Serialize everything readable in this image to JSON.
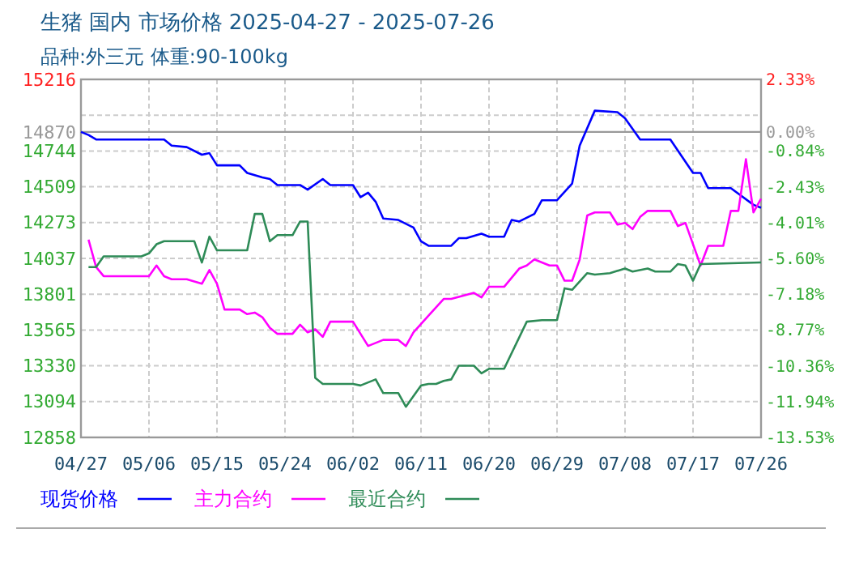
{
  "chart_data": {
    "type": "line",
    "title": "生猪 国内 市场价格 2025-04-27 - 2025-07-26",
    "subtitle": "品种:外三元 体重:90-100kg",
    "xlim": [
      "--04-27",
      "--07-26"
    ],
    "xticks": [
      {
        "value": "--04-27",
        "label": "04/27"
      },
      {
        "value": "--05-06",
        "label": "05/06"
      },
      {
        "value": "--05-15",
        "label": "05/15"
      },
      {
        "value": "--05-24",
        "label": "05/24"
      },
      {
        "value": "--06-02",
        "label": "06/02"
      },
      {
        "value": "--06-11",
        "label": "06/11"
      },
      {
        "value": "--06-20",
        "label": "06/20"
      },
      {
        "value": "--06-29",
        "label": "06/29"
      },
      {
        "value": "--07-08",
        "label": "07/08"
      },
      {
        "value": "--07-17",
        "label": "07/17"
      },
      {
        "value": "--07-26",
        "label": "07/26"
      }
    ],
    "ylim": [
      12858,
      15216
    ],
    "yticks": [
      15216,
      {
        "value": 14980,
        "label": null
      },
      14744,
      14509,
      14273,
      14037,
      13801,
      13565,
      13330,
      13094,
      12858
    ],
    "y2lim": [
      -13.53,
      2.33
    ],
    "y2ticks": [
      {
        "value": 2.33,
        "label": "2.33%"
      },
      {
        "value": 0,
        "label": "0.00%"
      },
      {
        "value": -0.84,
        "label": "-0.84%"
      },
      {
        "value": -2.43,
        "label": "-2.43%"
      },
      {
        "value": -4.01,
        "label": "-4.01%"
      },
      {
        "value": -5.6,
        "label": "-5.60%"
      },
      {
        "value": -7.18,
        "label": "-7.18%"
      },
      {
        "value": -8.77,
        "label": "-8.77%"
      },
      {
        "value": -10.36,
        "label": "-10.36%"
      },
      {
        "value": -11.94,
        "label": "-11.94%"
      },
      {
        "value": -13.53,
        "label": "-13.53%"
      }
    ],
    "ref_lines": [
      {
        "axis": "y",
        "value": 14870,
        "label": "14870",
        "color": "#999999"
      }
    ],
    "grid": true,
    "legend": "bottom",
    "line_style": "solid",
    "marker": "none",
    "series": [
      {
        "name": "现货价格",
        "color": "#0000ff",
        "x": [
          "--04-27",
          "--04-28",
          "--04-29",
          "--05-08",
          "--05-09",
          "--05-11",
          "--05-13",
          "--05-14",
          "--05-15",
          "--05-18",
          "--05-19",
          "--05-21",
          "--05-22",
          "--05-23",
          "--05-26",
          "--05-27",
          "--05-29",
          "--05-30",
          "--06-02",
          "--06-03",
          "--06-04",
          "--06-05",
          "--06-06",
          "--06-08",
          "--06-10",
          "--06-11",
          "--06-12",
          "--06-15",
          "--06-16",
          "--06-17",
          "--06-19",
          "--06-20",
          "--06-22",
          "--06-23",
          "--06-24",
          "--06-26",
          "--06-27",
          "--06-29",
          "--07-01",
          "--07-02",
          "--07-04",
          "--07-07",
          "--07-08",
          "--07-10",
          "--07-14",
          "--07-17",
          "--07-18",
          "--07-19",
          "--07-22",
          "--07-25",
          "--07-26"
        ],
        "values": [
          14870,
          14850,
          14820,
          14820,
          14780,
          14770,
          14720,
          14730,
          14650,
          14650,
          14600,
          14570,
          14560,
          14520,
          14520,
          14490,
          14560,
          14520,
          14520,
          14440,
          14470,
          14410,
          14300,
          14290,
          14240,
          14150,
          14120,
          14120,
          14170,
          14170,
          14200,
          14180,
          14180,
          14290,
          14280,
          14330,
          14420,
          14420,
          14530,
          14780,
          15010,
          15000,
          14960,
          14820,
          14820,
          14600,
          14600,
          14500,
          14500,
          14390,
          14370
        ]
      },
      {
        "name": "主力合约",
        "color": "#ff00ff",
        "x": [
          "--04-28",
          "--04-29",
          "--04-30",
          "--05-06",
          "--05-07",
          "--05-08",
          "--05-09",
          "--05-11",
          "--05-13",
          "--05-14",
          "--05-15",
          "--05-16",
          "--05-18",
          "--05-19",
          "--05-20",
          "--05-21",
          "--05-22",
          "--05-23",
          "--05-25",
          "--05-26",
          "--05-27",
          "--05-28",
          "--05-29",
          "--05-30",
          "--06-02",
          "--06-04",
          "--06-06",
          "--06-08",
          "--06-09",
          "--06-10",
          "--06-12",
          "--06-14",
          "--06-15",
          "--06-18",
          "--06-19",
          "--06-20",
          "--06-22",
          "--06-24",
          "--06-25",
          "--06-26",
          "--06-28",
          "--06-29",
          "--06-30",
          "--07-01",
          "--07-02",
          "--07-03",
          "--07-04",
          "--07-06",
          "--07-07",
          "--07-08",
          "--07-09",
          "--07-10",
          "--07-11",
          "--07-14",
          "--07-15",
          "--07-16",
          "--07-18",
          "--07-19",
          "--07-21",
          "--07-22",
          "--07-23",
          "--07-24",
          "--07-25",
          "--07-26"
        ],
        "values": [
          14160,
          13980,
          13920,
          13920,
          13990,
          13920,
          13900,
          13900,
          13870,
          13960,
          13870,
          13700,
          13700,
          13670,
          13680,
          13650,
          13580,
          13540,
          13540,
          13600,
          13550,
          13570,
          13520,
          13620,
          13620,
          13460,
          13500,
          13500,
          13460,
          13550,
          13660,
          13770,
          13770,
          13810,
          13780,
          13850,
          13850,
          13970,
          13990,
          14030,
          13990,
          13990,
          13890,
          13890,
          14030,
          14320,
          14340,
          14340,
          14260,
          14270,
          14230,
          14310,
          14350,
          14350,
          14250,
          14270,
          13990,
          14120,
          14120,
          14350,
          14350,
          14690,
          14340,
          14430
        ]
      },
      {
        "name": "最近合约",
        "color": "#2e8b57",
        "x": [
          "--04-28",
          "--04-29",
          "--04-30",
          "--05-05",
          "--05-06",
          "--05-07",
          "--05-08",
          "--05-12",
          "--05-13",
          "--05-14",
          "--05-15",
          "--05-19",
          "--05-20",
          "--05-21",
          "--05-22",
          "--05-23",
          "--05-25",
          "--05-26",
          "--05-27",
          "--05-28",
          "--05-29",
          "--06-02",
          "--06-03",
          "--06-05",
          "--06-06",
          "--06-08",
          "--06-09",
          "--06-11",
          "--06-12",
          "--06-13",
          "--06-14",
          "--06-15",
          "--06-16",
          "--06-18",
          "--06-19",
          "--06-20",
          "--06-22",
          "--06-25",
          "--06-27",
          "--06-29",
          "--06-30",
          "--07-01",
          "--07-03",
          "--07-04",
          "--07-06",
          "--07-08",
          "--07-09",
          "--07-11",
          "--07-12",
          "--07-14",
          "--07-15",
          "--07-16",
          "--07-17",
          "--07-18",
          "--07-26"
        ],
        "values": [
          13980,
          13980,
          14050,
          14050,
          14070,
          14130,
          14150,
          14150,
          14010,
          14180,
          14090,
          14090,
          14330,
          14330,
          14150,
          14190,
          14190,
          14280,
          14280,
          13250,
          13210,
          13210,
          13200,
          13240,
          13150,
          13150,
          13060,
          13200,
          13210,
          13210,
          13230,
          13240,
          13330,
          13330,
          13280,
          13310,
          13310,
          13620,
          13630,
          13630,
          13840,
          13830,
          13940,
          13930,
          13940,
          13970,
          13950,
          13970,
          13950,
          13950,
          14000,
          13990,
          13890,
          14000,
          14010
        ]
      }
    ]
  }
}
